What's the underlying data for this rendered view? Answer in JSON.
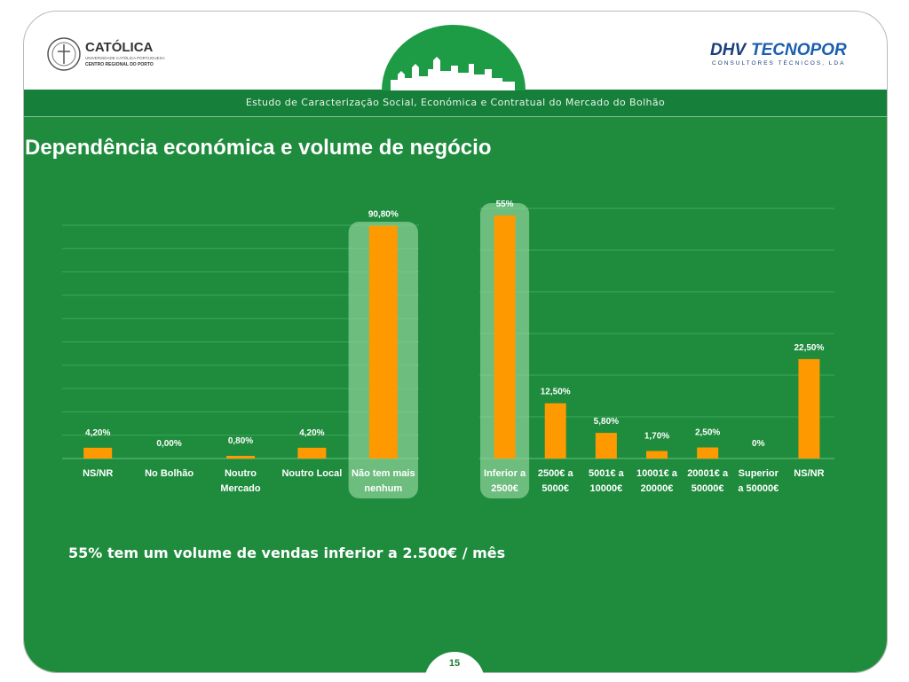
{
  "header": {
    "banner_text": "Estudo de Caracterização Social, Económica e Contratual do Mercado do Bolhão",
    "logo_left_name": "CATÓLICA",
    "logo_left_sub1": "UNIVERSIDADE CATÓLICA PORTUGUESA",
    "logo_left_sub2": "CENTRO REGIONAL DO PORTO",
    "logo_right_dhv": "DHV",
    "logo_right_tecnopor": "TECNOPOR",
    "logo_right_sub": "CONSULTORES TÉCNICOS, LDA"
  },
  "page_title": "Dependência económica e volume de negócio",
  "caption": "55% tem um volume de vendas inferior a 2.500€ / mês",
  "page_number": "15",
  "colors": {
    "bar": "#ff9900",
    "background": "#1e8b3d",
    "highlight": "#8fd39a",
    "grid": "#3da85a"
  },
  "chart_data": [
    {
      "type": "bar",
      "title": "",
      "ylim": [
        0,
        100
      ],
      "grid": true,
      "categories": [
        [
          "NS/NR"
        ],
        [
          "No Bolhão"
        ],
        [
          "Noutro",
          "Mercado"
        ],
        [
          "Noutro Local"
        ],
        [
          "Não tem mais",
          "nenhum"
        ]
      ],
      "values": [
        4.2,
        0.0,
        0.8,
        4.2,
        90.8
      ],
      "data_labels": [
        "4,20%",
        "0,00%",
        "0,80%",
        "4,20%",
        "90,80%"
      ],
      "highlighted_index": 4
    },
    {
      "type": "bar",
      "title": "",
      "ylim": [
        0,
        60
      ],
      "grid": true,
      "categories": [
        [
          "Inferior a",
          "2500€"
        ],
        [
          "2500€ a",
          "5000€"
        ],
        [
          "5001€ a",
          "10000€"
        ],
        [
          "10001€ a",
          "20000€"
        ],
        [
          "20001€ a",
          "50000€"
        ],
        [
          "Superior",
          "a 50000€"
        ],
        [
          "NS/NR"
        ]
      ],
      "values": [
        55,
        12.5,
        5.8,
        1.7,
        2.5,
        0,
        22.5
      ],
      "data_labels": [
        "55%",
        "12,50%",
        "5,80%",
        "1,70%",
        "2,50%",
        "0%",
        "22,50%"
      ],
      "highlighted_index": 0
    }
  ]
}
